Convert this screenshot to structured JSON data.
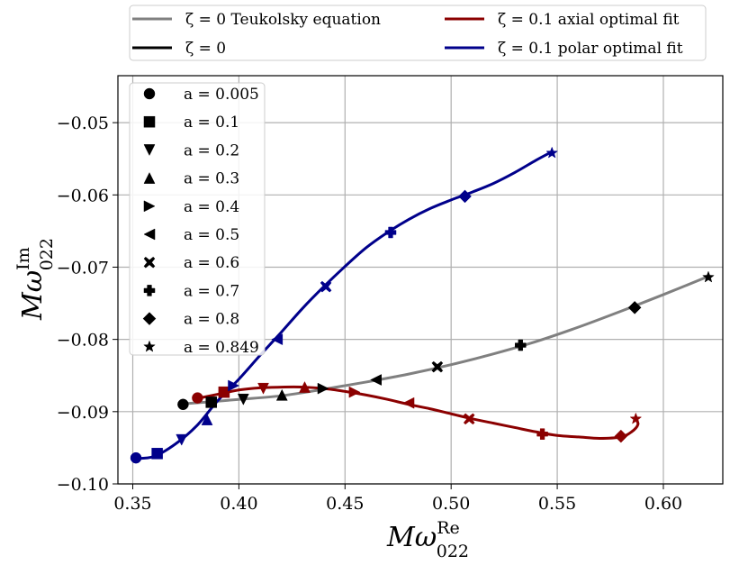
{
  "chart_data": {
    "type": "line",
    "title": "",
    "xlabel": {
      "main": "Mω",
      "sup": "Re",
      "sub": "022"
    },
    "ylabel": {
      "main": "Mω",
      "sup": "Im",
      "sub": "022"
    },
    "xlim": [
      0.343,
      0.628
    ],
    "ylim": [
      -0.1,
      -0.0435
    ],
    "xticks": [
      0.35,
      0.4,
      0.45,
      0.5,
      0.55,
      0.6
    ],
    "xtick_labels": [
      "0.35",
      "0.40",
      "0.45",
      "0.50",
      "0.55",
      "0.60"
    ],
    "yticks": [
      -0.1,
      -0.09,
      -0.08,
      -0.07,
      -0.06,
      -0.05
    ],
    "ytick_labels": [
      "−0.10",
      "−0.09",
      "−0.08",
      "−0.07",
      "−0.06",
      "−0.05"
    ],
    "grid": true,
    "spin_labels": [
      "a = 0.005",
      "a = 0.1",
      "a = 0.2",
      "a = 0.3",
      "a = 0.4",
      "a = 0.5",
      "a = 0.6",
      "a = 0.7",
      "a = 0.8",
      "a = 0.849"
    ],
    "markers": [
      "circle",
      "square",
      "triangle-down",
      "triangle-up",
      "triangle-right",
      "triangle-left",
      "x",
      "plus",
      "diamond",
      "star"
    ],
    "series": [
      {
        "name": "ζ = 0 Teukolsky equation",
        "color": "#808080",
        "curve": [
          [
            0.374,
            -0.0889
          ],
          [
            0.384,
            -0.0887
          ],
          [
            0.4,
            -0.0883
          ],
          [
            0.42,
            -0.0878
          ],
          [
            0.44,
            -0.0869
          ],
          [
            0.46,
            -0.0859
          ],
          [
            0.48,
            -0.0848
          ],
          [
            0.5,
            -0.0835
          ],
          [
            0.52,
            -0.082
          ],
          [
            0.54,
            -0.0803
          ],
          [
            0.56,
            -0.0783
          ],
          [
            0.58,
            -0.0761
          ],
          [
            0.6,
            -0.0738
          ],
          [
            0.621,
            -0.0713
          ]
        ],
        "points": []
      },
      {
        "name": "ζ = 0",
        "color": "#000000",
        "curve": [],
        "points": [
          [
            0.3737,
            -0.089
          ],
          [
            0.387,
            -0.0887
          ],
          [
            0.4021,
            -0.0883
          ],
          [
            0.4203,
            -0.0877
          ],
          [
            0.4397,
            -0.0868
          ],
          [
            0.4646,
            -0.0856
          ],
          [
            0.4935,
            -0.0838
          ],
          [
            0.5327,
            -0.0808
          ],
          [
            0.5865,
            -0.0756
          ],
          [
            0.6212,
            -0.0714
          ]
        ]
      },
      {
        "name": "ζ = 0.1 axial optimal fit",
        "color": "#8b0000",
        "curve": [
          [
            0.38,
            -0.0882
          ],
          [
            0.39,
            -0.0876
          ],
          [
            0.4,
            -0.087
          ],
          [
            0.41,
            -0.0867
          ],
          [
            0.42,
            -0.0866
          ],
          [
            0.43,
            -0.0866
          ],
          [
            0.44,
            -0.0868
          ],
          [
            0.45,
            -0.0872
          ],
          [
            0.46,
            -0.0877
          ],
          [
            0.47,
            -0.0883
          ],
          [
            0.48,
            -0.089
          ],
          [
            0.49,
            -0.0896
          ],
          [
            0.5,
            -0.0903
          ],
          [
            0.51,
            -0.091
          ],
          [
            0.52,
            -0.0916
          ],
          [
            0.53,
            -0.0922
          ],
          [
            0.54,
            -0.0928
          ],
          [
            0.55,
            -0.0933
          ],
          [
            0.56,
            -0.0935
          ],
          [
            0.57,
            -0.0937
          ],
          [
            0.58,
            -0.0935
          ],
          [
            0.585,
            -0.0928
          ],
          [
            0.588,
            -0.0918
          ],
          [
            0.587,
            -0.091
          ]
        ],
        "points": [
          [
            0.3805,
            -0.0881
          ],
          [
            0.393,
            -0.0873
          ],
          [
            0.4115,
            -0.0868
          ],
          [
            0.431,
            -0.0866
          ],
          [
            0.4545,
            -0.0873
          ],
          [
            0.48,
            -0.0888
          ],
          [
            0.5085,
            -0.091
          ],
          [
            0.543,
            -0.0931
          ],
          [
            0.58,
            -0.0934
          ],
          [
            0.587,
            -0.091
          ]
        ]
      },
      {
        "name": "ζ = 0.1 polar optimal fit",
        "color": "#00008b",
        "curve": [
          [
            0.351,
            -0.0965
          ],
          [
            0.36,
            -0.0962
          ],
          [
            0.37,
            -0.0945
          ],
          [
            0.38,
            -0.092
          ],
          [
            0.39,
            -0.0885
          ],
          [
            0.4,
            -0.0855
          ],
          [
            0.41,
            -0.0822
          ],
          [
            0.42,
            -0.079
          ],
          [
            0.43,
            -0.0757
          ],
          [
            0.44,
            -0.0727
          ],
          [
            0.45,
            -0.0699
          ],
          [
            0.46,
            -0.0673
          ],
          [
            0.47,
            -0.0652
          ],
          [
            0.48,
            -0.0634
          ],
          [
            0.49,
            -0.0619
          ],
          [
            0.5,
            -0.0607
          ],
          [
            0.51,
            -0.0596
          ],
          [
            0.52,
            -0.0584
          ],
          [
            0.53,
            -0.0569
          ],
          [
            0.54,
            -0.0552
          ],
          [
            0.547,
            -0.0541
          ]
        ],
        "points": [
          [
            0.3515,
            -0.0964
          ],
          [
            0.3615,
            -0.0958
          ],
          [
            0.373,
            -0.0939
          ],
          [
            0.385,
            -0.0911
          ],
          [
            0.3975,
            -0.0864
          ],
          [
            0.418,
            -0.08
          ],
          [
            0.441,
            -0.0727
          ],
          [
            0.4715,
            -0.0652
          ],
          [
            0.5065,
            -0.0602
          ],
          [
            0.5475,
            -0.0542
          ]
        ]
      }
    ]
  }
}
